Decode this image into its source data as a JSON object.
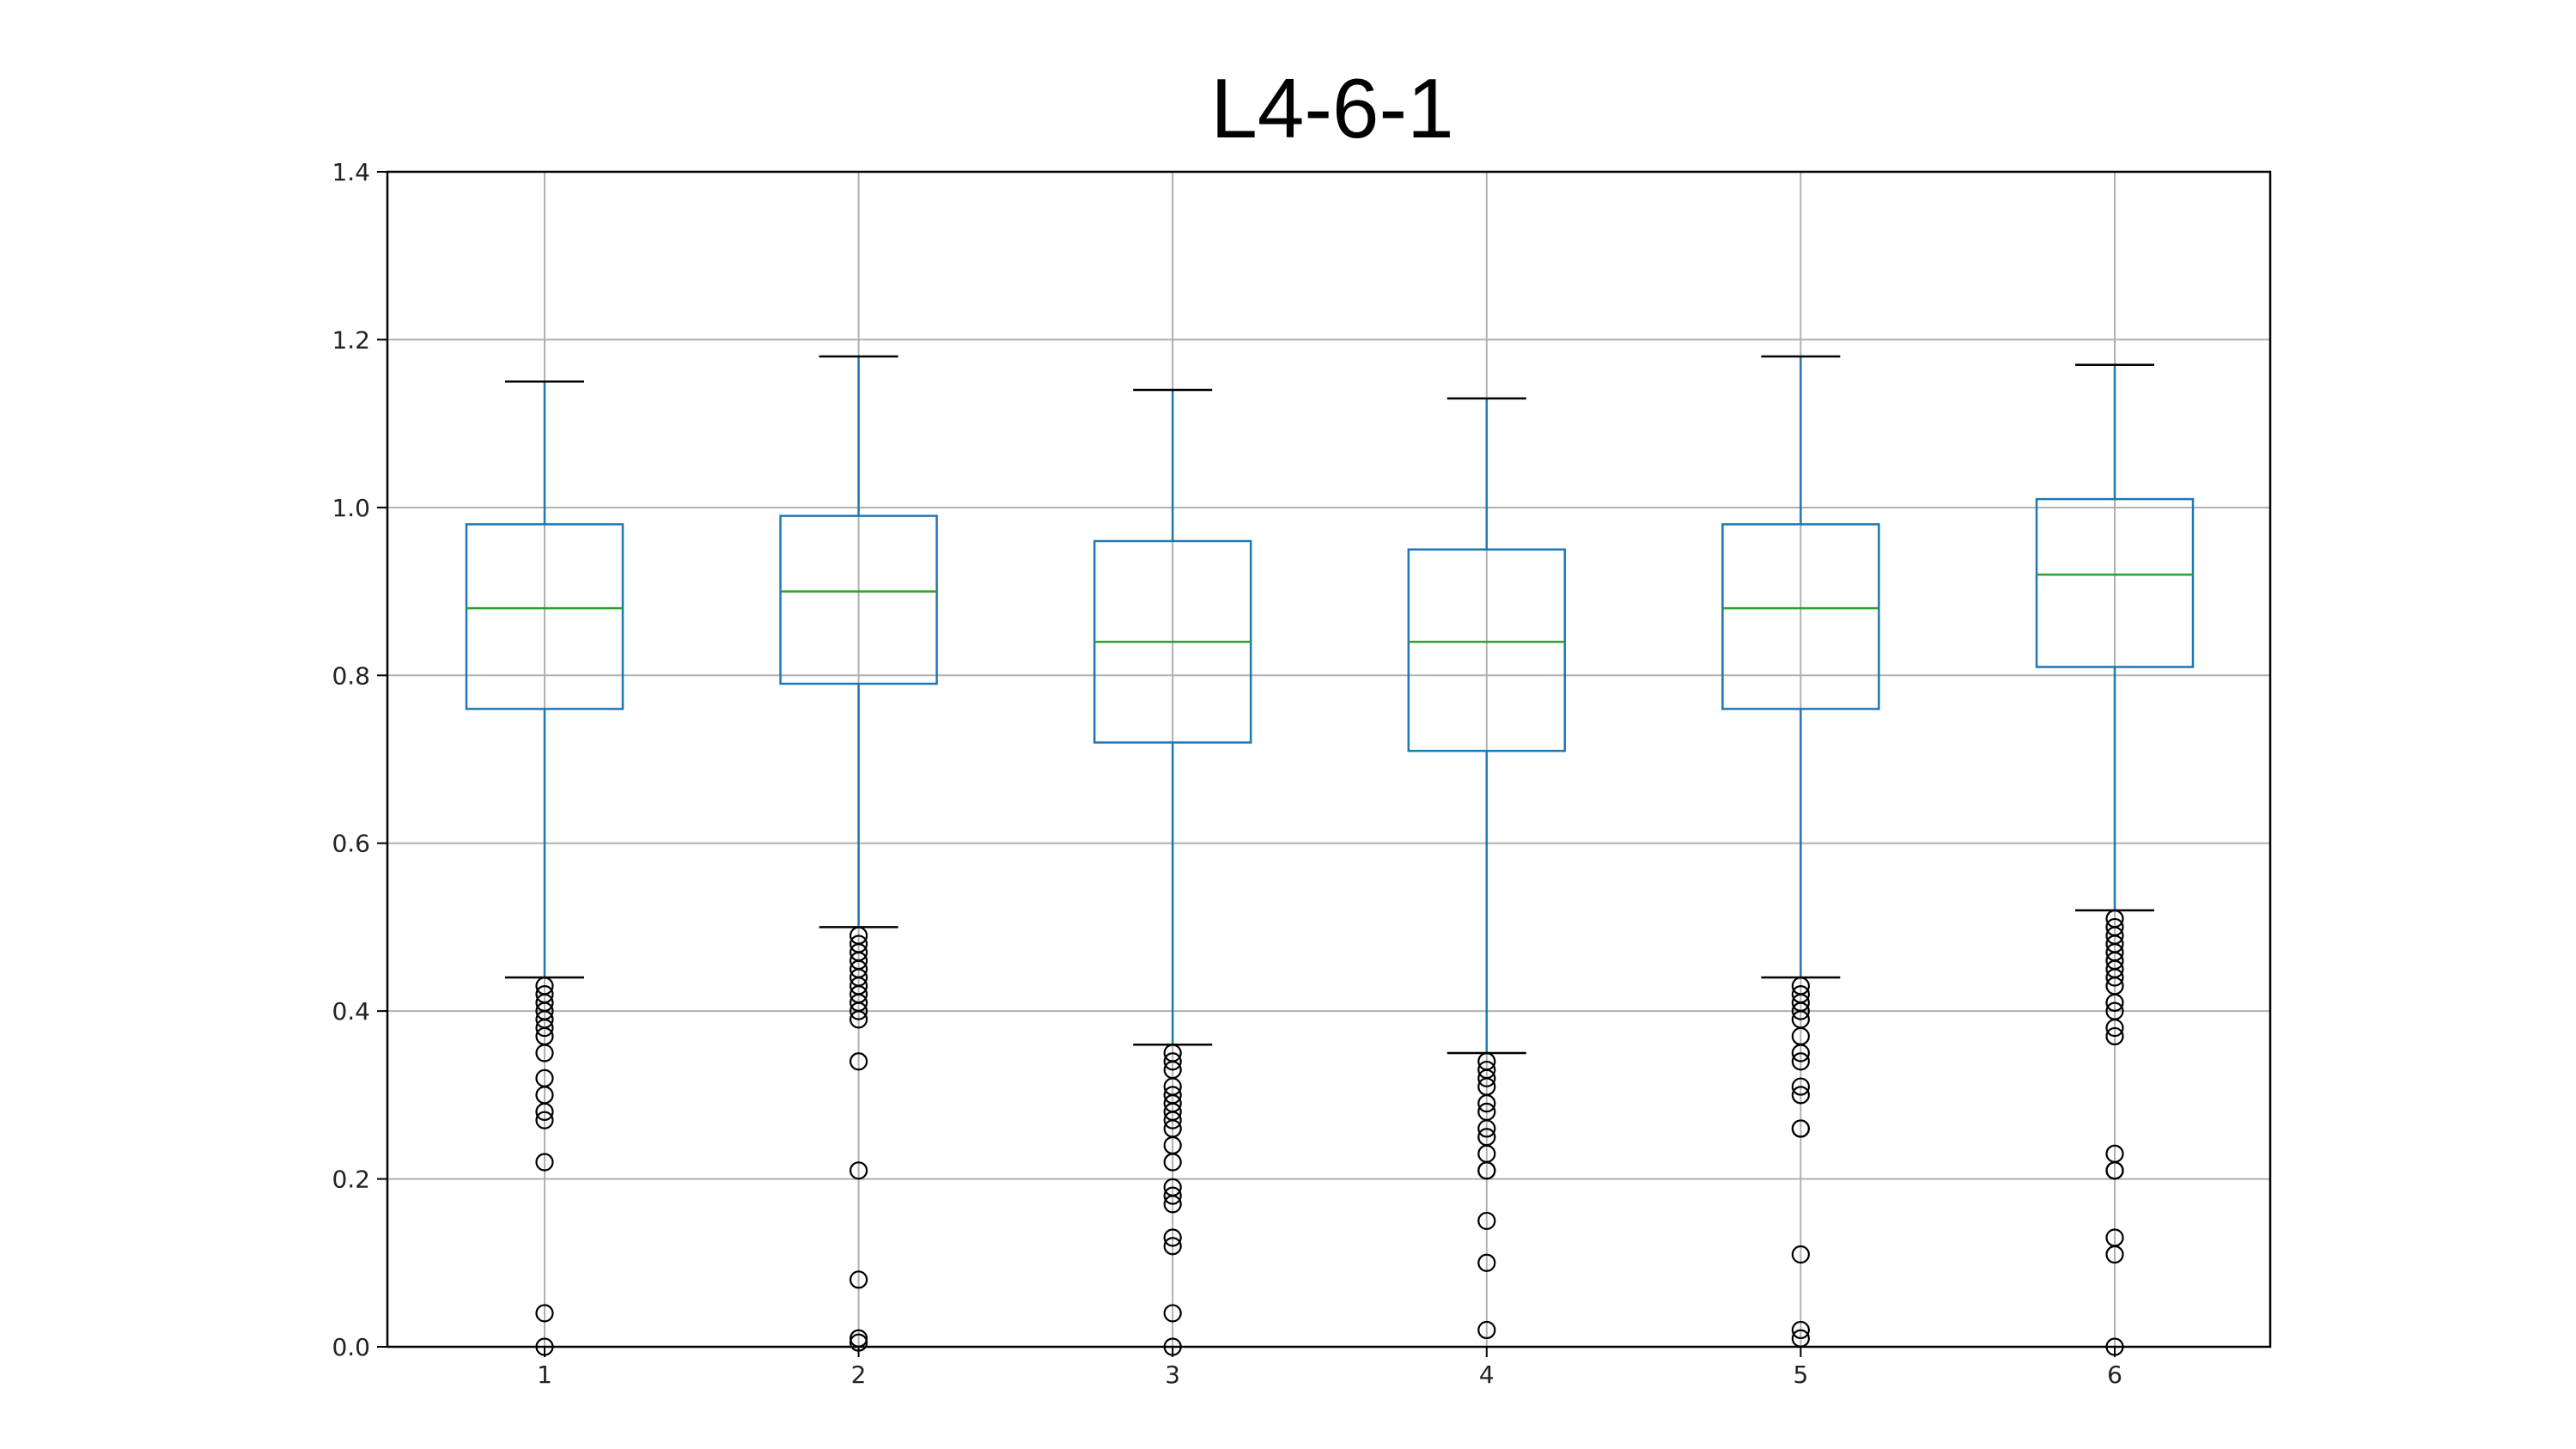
{
  "chart_data": {
    "type": "box",
    "title": "L4-6-1",
    "xlabel": "",
    "ylabel": "",
    "categories": [
      "1",
      "2",
      "3",
      "4",
      "5",
      "6"
    ],
    "ylim": [
      0.0,
      1.4
    ],
    "yticks": [
      "0.0",
      "0.2",
      "0.4",
      "0.6",
      "0.8",
      "1.0",
      "1.2",
      "1.4"
    ],
    "grid": true,
    "colors": {
      "box": "#1f77b4",
      "median": "#2ca02c",
      "cap": "#000000",
      "flier": "#000000",
      "grid": "#b0b0b0"
    },
    "boxes": [
      {
        "label": "1",
        "whisker_low": 0.44,
        "q1": 0.76,
        "median": 0.88,
        "q3": 0.98,
        "whisker_high": 1.15,
        "fliers": [
          0.43,
          0.42,
          0.41,
          0.4,
          0.39,
          0.38,
          0.37,
          0.35,
          0.32,
          0.3,
          0.28,
          0.27,
          0.22,
          0.04,
          0.0
        ]
      },
      {
        "label": "2",
        "whisker_low": 0.5,
        "q1": 0.79,
        "median": 0.9,
        "q3": 0.99,
        "whisker_high": 1.18,
        "fliers": [
          0.49,
          0.48,
          0.47,
          0.46,
          0.45,
          0.44,
          0.43,
          0.42,
          0.41,
          0.4,
          0.39,
          0.34,
          0.21,
          0.08,
          0.01,
          0.005
        ]
      },
      {
        "label": "3",
        "whisker_low": 0.36,
        "q1": 0.72,
        "median": 0.84,
        "q3": 0.96,
        "whisker_high": 1.14,
        "fliers": [
          0.35,
          0.34,
          0.33,
          0.31,
          0.3,
          0.29,
          0.28,
          0.27,
          0.26,
          0.24,
          0.22,
          0.19,
          0.18,
          0.17,
          0.13,
          0.12,
          0.04,
          0.0
        ]
      },
      {
        "label": "4",
        "whisker_low": 0.35,
        "q1": 0.71,
        "median": 0.84,
        "q3": 0.95,
        "whisker_high": 1.13,
        "fliers": [
          0.34,
          0.33,
          0.32,
          0.31,
          0.29,
          0.28,
          0.26,
          0.25,
          0.23,
          0.21,
          0.21,
          0.15,
          0.1,
          0.02
        ]
      },
      {
        "label": "5",
        "whisker_low": 0.44,
        "q1": 0.76,
        "median": 0.88,
        "q3": 0.98,
        "whisker_high": 1.18,
        "fliers": [
          0.43,
          0.42,
          0.41,
          0.4,
          0.39,
          0.37,
          0.35,
          0.34,
          0.31,
          0.3,
          0.26,
          0.26,
          0.11,
          0.02,
          0.01
        ]
      },
      {
        "label": "6",
        "whisker_low": 0.52,
        "q1": 0.81,
        "median": 0.92,
        "q3": 1.01,
        "whisker_high": 1.17,
        "fliers": [
          0.51,
          0.5,
          0.49,
          0.48,
          0.47,
          0.46,
          0.45,
          0.44,
          0.43,
          0.41,
          0.4,
          0.38,
          0.37,
          0.23,
          0.21,
          0.21,
          0.13,
          0.11,
          0.0
        ]
      }
    ]
  }
}
